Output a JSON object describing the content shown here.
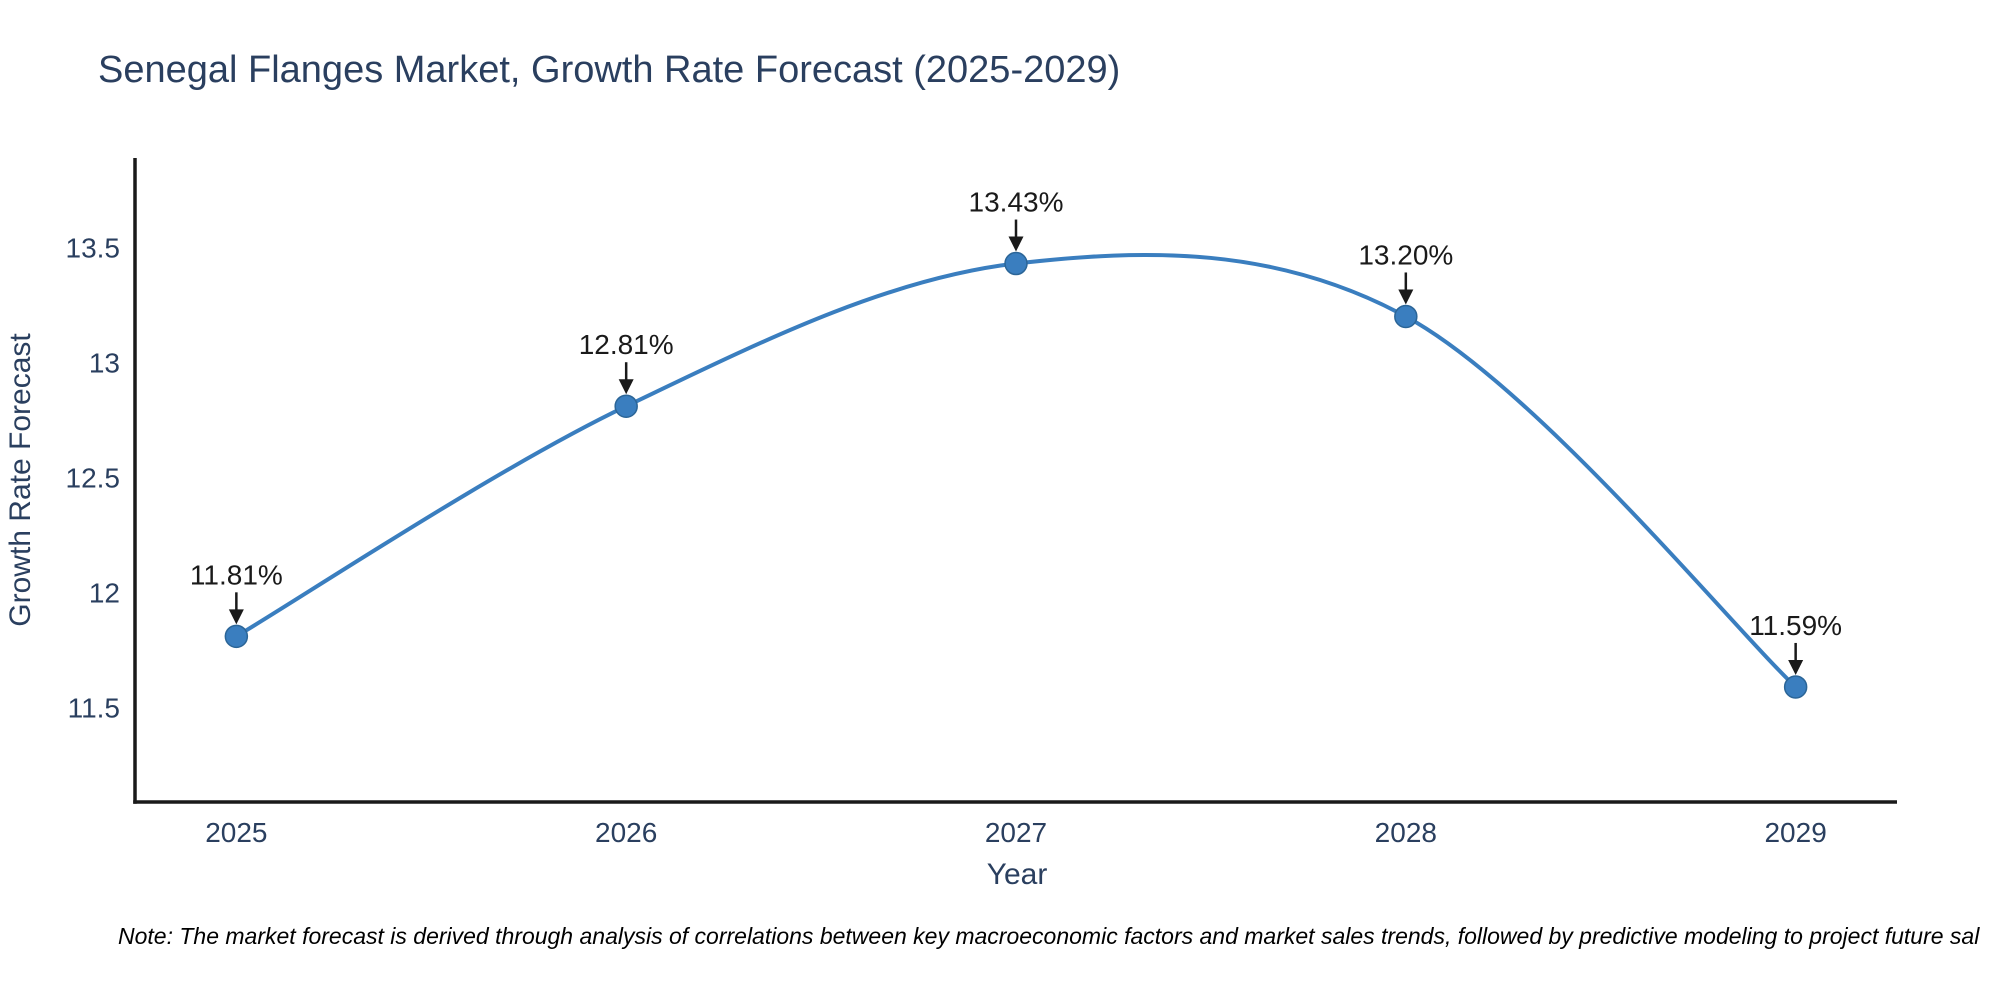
{
  "page": {
    "background": "#ffffff"
  },
  "title": "Senegal Flanges Market, Growth Rate Forecast (2025-2029)",
  "note": "Note: The market forecast is derived through analysis of correlations between key macroeconomic factors and market sales trends, followed by predictive modeling to project future sal",
  "colors": {
    "title_text": "#2a3f5f",
    "axis_text": "#2a3f5f",
    "axis_line": "#1a1a1a",
    "line": "#3a7ebf",
    "marker": "#3a7ebf",
    "marker_edge": "#2b6597",
    "annotation_text": "#1a1a1a",
    "annotation_arrow": "#1a1a1a",
    "note_text": "#000000"
  },
  "chart_data": {
    "type": "line",
    "title": "Senegal Flanges Market, Growth Rate Forecast (2025-2029)",
    "xlabel": "Year",
    "ylabel": "Growth Rate Forecast",
    "x": [
      2025,
      2026,
      2027,
      2028,
      2029
    ],
    "y": [
      11.81,
      12.81,
      13.43,
      13.2,
      11.59
    ],
    "point_labels": [
      "11.81%",
      "12.81%",
      "13.43%",
      "13.20%",
      "11.59%"
    ],
    "xtick_labels": [
      "2025",
      "2026",
      "2027",
      "2028",
      "2029"
    ],
    "ytick_values": [
      11.5,
      12,
      12.5,
      13,
      13.5
    ],
    "ytick_labels": [
      "11.5",
      "12",
      "12.5",
      "13",
      "13.5"
    ],
    "xlim": [
      2024.74,
      2029.26
    ],
    "ylim": [
      11.09,
      13.88
    ],
    "grid": false,
    "legend": "none",
    "line_shape": "spline",
    "markers": true
  }
}
